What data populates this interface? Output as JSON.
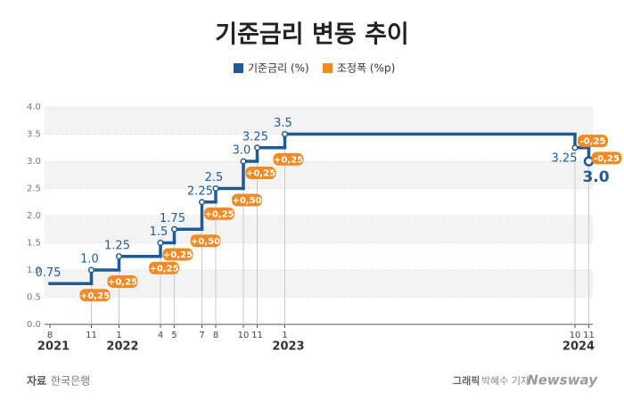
{
  "chart_data": {
    "type": "step",
    "title": "기준금리 변동 추이",
    "x": [
      "2021-08",
      "2021-11",
      "2022-01",
      "2022-04",
      "2022-05",
      "2022-07",
      "2022-08",
      "2022-10",
      "2022-11",
      "2023-01",
      "2024-10",
      "2024-11"
    ],
    "series": [
      {
        "name": "기준금리 (%)",
        "color": "#1f5a96",
        "values": [
          0.75,
          1,
          1.25,
          1.5,
          1.75,
          2.25,
          2.5,
          3,
          3.25,
          3.5,
          3.25,
          3
        ],
        "value_labels": [
          "0.75",
          "1.0",
          "1.25",
          "1.5",
          "1.75",
          "2.25",
          "2.5",
          "3.0",
          "3.25",
          "3.5",
          "3.25",
          "3.0"
        ]
      },
      {
        "name": "조정폭 (%p)",
        "color": "#f08a24",
        "values": [
          null,
          0.25,
          0.25,
          0.25,
          0.25,
          0.5,
          0.25,
          0.5,
          0.25,
          0.25,
          -0.25,
          -0.25
        ],
        "value_labels": [
          null,
          "+0,25",
          "+0,25",
          "+0,25",
          "+0,25",
          "+0,50",
          "+0,25",
          "+0,50",
          "+0,25",
          "+0,25",
          "-0,25",
          "-0,25"
        ]
      }
    ],
    "xticks": [
      {
        "value": "2021-08",
        "label": "8"
      },
      {
        "value": "2021-11",
        "label": "11"
      },
      {
        "value": "2022-01",
        "label": "1"
      },
      {
        "value": "2022-04",
        "label": "4"
      },
      {
        "value": "2022-05",
        "label": "5"
      },
      {
        "value": "2022-07",
        "label": "7"
      },
      {
        "value": "2022-08",
        "label": "8"
      },
      {
        "value": "2022-10",
        "label": "10"
      },
      {
        "value": "2022-11",
        "label": "11"
      },
      {
        "value": "2023-01",
        "label": "1"
      },
      {
        "value": "2024-10",
        "label": "10"
      },
      {
        "value": "2024-11",
        "label": "11"
      }
    ],
    "years": [
      "2021",
      "2022",
      "2023",
      "2024"
    ],
    "ylim": [
      0,
      4
    ],
    "yticks": [
      {
        "value": 0,
        "label": "0.0"
      },
      0.5,
      {
        "value": 1,
        "label": "1.0"
      },
      1.5,
      {
        "value": 2,
        "label": "2.0"
      },
      2.5,
      {
        "value": 3,
        "label": "3.0"
      },
      3.5,
      {
        "value": 4,
        "label": "4.0"
      }
    ],
    "grid": true
  },
  "source": {
    "label": "자료",
    "text": "한국은행"
  },
  "credit": {
    "label": "그래픽",
    "text": "박혜수 기자"
  },
  "brand": "Newsway"
}
